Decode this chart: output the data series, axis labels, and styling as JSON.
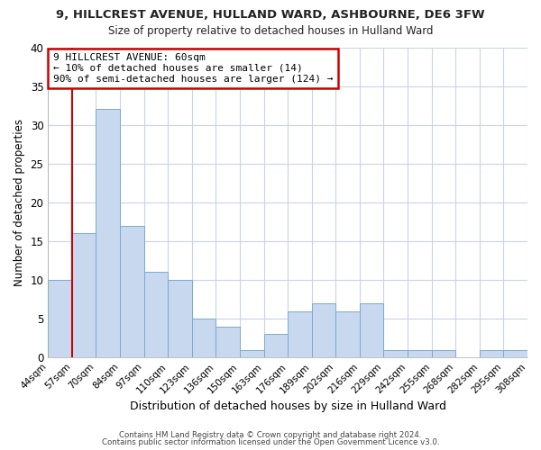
{
  "title": "9, HILLCREST AVENUE, HULLAND WARD, ASHBOURNE, DE6 3FW",
  "subtitle": "Size of property relative to detached houses in Hulland Ward",
  "xlabel": "Distribution of detached houses by size in Hulland Ward",
  "ylabel": "Number of detached properties",
  "bins": [
    "44sqm",
    "57sqm",
    "70sqm",
    "84sqm",
    "97sqm",
    "110sqm",
    "123sqm",
    "136sqm",
    "150sqm",
    "163sqm",
    "176sqm",
    "189sqm",
    "202sqm",
    "216sqm",
    "229sqm",
    "242sqm",
    "255sqm",
    "268sqm",
    "282sqm",
    "295sqm",
    "308sqm"
  ],
  "counts": [
    10,
    16,
    32,
    17,
    11,
    10,
    5,
    4,
    1,
    3,
    6,
    7,
    6,
    7,
    1,
    1,
    1,
    0,
    1,
    1
  ],
  "bar_color": "#c8d8ee",
  "bar_edge_color": "#7aaad0",
  "annotation_line1": "9 HILLCREST AVENUE: 60sqm",
  "annotation_line2": "← 10% of detached houses are smaller (14)",
  "annotation_line3": "90% of semi-detached houses are larger (124) →",
  "red_line_bin_index": 1,
  "annotation_box_color": "#ffffff",
  "annotation_box_edge": "#cc0000",
  "red_line_color": "#cc0000",
  "background_color": "#ffffff",
  "grid_color": "#c8d4e8",
  "footer1": "Contains HM Land Registry data © Crown copyright and database right 2024.",
  "footer2": "Contains public sector information licensed under the Open Government Licence v3.0.",
  "ylim": [
    0,
    40
  ],
  "yticks": [
    0,
    5,
    10,
    15,
    20,
    25,
    30,
    35,
    40
  ]
}
